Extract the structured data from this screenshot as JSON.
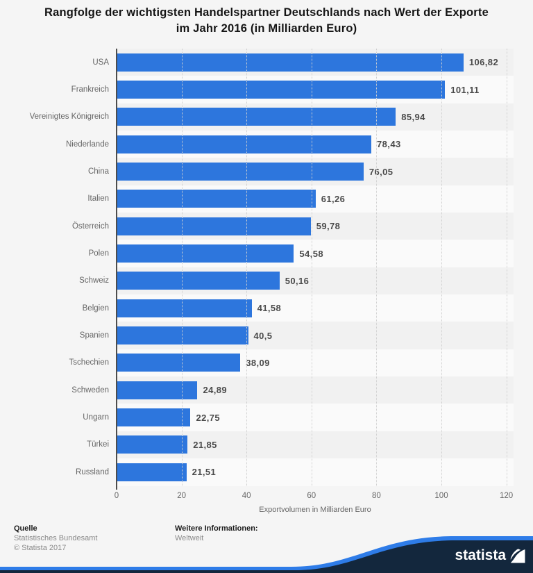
{
  "title": {
    "line1": "Rangfolge der wichtigsten Handelspartner Deutschlands nach Wert der Exporte",
    "line2": "im Jahr 2016 (in Milliarden Euro)"
  },
  "chart_data": {
    "type": "bar",
    "orientation": "horizontal",
    "title": "Rangfolge der wichtigsten Handelspartner Deutschlands nach Wert der Exporte im Jahr 2016 (in Milliarden Euro)",
    "categories": [
      "USA",
      "Frankreich",
      "Vereinigtes Königreich",
      "Niederlande",
      "China",
      "Italien",
      "Österreich",
      "Polen",
      "Schweiz",
      "Belgien",
      "Spanien",
      "Tschechien",
      "Schweden",
      "Ungarn",
      "Türkei",
      "Russland"
    ],
    "values": [
      106.82,
      101.11,
      85.94,
      78.43,
      76.05,
      61.26,
      59.78,
      54.58,
      50.16,
      41.58,
      40.5,
      38.09,
      24.89,
      22.75,
      21.85,
      21.51
    ],
    "value_labels": [
      "106,82",
      "101,11",
      "85,94",
      "78,43",
      "76,05",
      "61,26",
      "59,78",
      "54,58",
      "50,16",
      "41,58",
      "40,5",
      "38,09",
      "24,89",
      "22,75",
      "21,85",
      "21,51"
    ],
    "xlabel": "Exportvolumen in Milliarden Euro",
    "xlim": [
      0,
      120
    ],
    "xticks": [
      0,
      20,
      40,
      60,
      80,
      100,
      120
    ],
    "xtick_labels": [
      "0",
      "20",
      "40",
      "60",
      "80",
      "100",
      "120"
    ],
    "grid": "dotted-vertical",
    "legend": "none",
    "bar_color": "#2d76dd",
    "stripe_colors": [
      "#f1f1f1",
      "#fafafa"
    ]
  },
  "footer": {
    "source_label": "Quelle",
    "source_lines": [
      "Statistisches Bundesamt",
      "© Statista 2017"
    ],
    "info_label": "Weitere Informationen:",
    "info_value": "Weltweit"
  },
  "branding": {
    "logo_text": "statista",
    "logo_icon": "statista-square-icon",
    "navy": "#13273d",
    "blue": "#2e7ce8"
  }
}
